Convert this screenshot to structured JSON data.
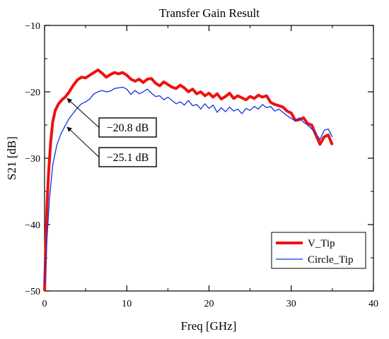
{
  "chart_data": {
    "type": "line",
    "title": "Transfer Gain Result",
    "xlabel": "Freq [GHz]",
    "ylabel": "S21 [dB]",
    "xlim": [
      0,
      40
    ],
    "ylim": [
      -50,
      -10
    ],
    "xticks": [
      0,
      10,
      20,
      30,
      40
    ],
    "yticks": [
      -50,
      -40,
      -30,
      -20,
      -10
    ],
    "grid": false,
    "legend_position": "bottom-right",
    "series": [
      {
        "name": "V_Tip",
        "color": "#ee1111",
        "points": [
          [
            0.0,
            -50.0
          ],
          [
            0.15,
            -43.0
          ],
          [
            0.3,
            -37.0
          ],
          [
            0.5,
            -32.0
          ],
          [
            0.75,
            -27.5
          ],
          [
            1.0,
            -24.5
          ],
          [
            1.3,
            -22.8
          ],
          [
            1.7,
            -21.8
          ],
          [
            2.2,
            -21.1
          ],
          [
            2.5,
            -20.8
          ],
          [
            3.0,
            -20.0
          ],
          [
            3.5,
            -19.0
          ],
          [
            4.0,
            -18.2
          ],
          [
            4.5,
            -17.8
          ],
          [
            5.0,
            -17.9
          ],
          [
            5.5,
            -17.5
          ],
          [
            6.0,
            -17.1
          ],
          [
            6.5,
            -16.7
          ],
          [
            7.0,
            -17.2
          ],
          [
            7.5,
            -17.8
          ],
          [
            8.0,
            -17.4
          ],
          [
            8.5,
            -17.1
          ],
          [
            9.0,
            -17.3
          ],
          [
            9.5,
            -17.1
          ],
          [
            10.0,
            -17.5
          ],
          [
            10.5,
            -18.1
          ],
          [
            11.0,
            -18.4
          ],
          [
            11.5,
            -18.1
          ],
          [
            12.0,
            -18.6
          ],
          [
            12.5,
            -18.1
          ],
          [
            13.0,
            -18.0
          ],
          [
            13.5,
            -18.7
          ],
          [
            14.0,
            -19.1
          ],
          [
            14.5,
            -18.5
          ],
          [
            15.0,
            -18.9
          ],
          [
            15.5,
            -19.3
          ],
          [
            16.0,
            -19.5
          ],
          [
            16.5,
            -19.0
          ],
          [
            17.0,
            -19.4
          ],
          [
            17.5,
            -20.0
          ],
          [
            18.0,
            -19.6
          ],
          [
            18.5,
            -20.3
          ],
          [
            19.0,
            -20.0
          ],
          [
            19.5,
            -20.6
          ],
          [
            20.0,
            -20.2
          ],
          [
            20.5,
            -20.8
          ],
          [
            21.0,
            -20.3
          ],
          [
            21.5,
            -21.1
          ],
          [
            22.0,
            -20.7
          ],
          [
            22.5,
            -20.2
          ],
          [
            23.0,
            -21.0
          ],
          [
            23.5,
            -20.6
          ],
          [
            24.0,
            -20.9
          ],
          [
            24.5,
            -21.2
          ],
          [
            25.0,
            -20.7
          ],
          [
            25.5,
            -21.0
          ],
          [
            26.0,
            -20.5
          ],
          [
            26.5,
            -20.8
          ],
          [
            27.0,
            -20.6
          ],
          [
            27.5,
            -21.6
          ],
          [
            28.0,
            -21.9
          ],
          [
            28.5,
            -22.1
          ],
          [
            29.0,
            -22.3
          ],
          [
            29.5,
            -22.9
          ],
          [
            30.0,
            -23.2
          ],
          [
            30.5,
            -24.3
          ],
          [
            31.0,
            -24.2
          ],
          [
            31.5,
            -23.9
          ],
          [
            32.0,
            -24.8
          ],
          [
            32.5,
            -25.0
          ],
          [
            33.0,
            -26.5
          ],
          [
            33.5,
            -27.9
          ],
          [
            34.0,
            -26.8
          ],
          [
            34.5,
            -26.5
          ],
          [
            35.0,
            -28.0
          ]
        ]
      },
      {
        "name": "Circle_Tip",
        "color": "#1133dd",
        "points": [
          [
            0.0,
            -49.0
          ],
          [
            0.3,
            -42.0
          ],
          [
            0.6,
            -36.0
          ],
          [
            1.0,
            -31.0
          ],
          [
            1.5,
            -28.0
          ],
          [
            2.0,
            -26.3
          ],
          [
            2.5,
            -25.1
          ],
          [
            3.0,
            -24.0
          ],
          [
            3.5,
            -23.2
          ],
          [
            4.0,
            -22.4
          ],
          [
            4.5,
            -21.8
          ],
          [
            5.0,
            -21.5
          ],
          [
            5.5,
            -21.1
          ],
          [
            6.0,
            -20.3
          ],
          [
            6.5,
            -20.0
          ],
          [
            7.0,
            -19.8
          ],
          [
            7.5,
            -20.0
          ],
          [
            8.0,
            -19.9
          ],
          [
            8.5,
            -19.5
          ],
          [
            9.0,
            -19.4
          ],
          [
            9.5,
            -19.3
          ],
          [
            10.0,
            -19.6
          ],
          [
            10.5,
            -20.4
          ],
          [
            11.0,
            -19.8
          ],
          [
            11.5,
            -20.3
          ],
          [
            12.0,
            -20.0
          ],
          [
            12.5,
            -19.6
          ],
          [
            13.0,
            -20.2
          ],
          [
            13.5,
            -20.7
          ],
          [
            14.0,
            -20.6
          ],
          [
            14.5,
            -21.2
          ],
          [
            15.0,
            -20.8
          ],
          [
            15.5,
            -21.3
          ],
          [
            16.0,
            -21.8
          ],
          [
            16.5,
            -21.5
          ],
          [
            17.0,
            -22.0
          ],
          [
            17.5,
            -21.3
          ],
          [
            18.0,
            -22.1
          ],
          [
            18.5,
            -21.9
          ],
          [
            19.0,
            -22.6
          ],
          [
            19.5,
            -21.8
          ],
          [
            20.0,
            -22.5
          ],
          [
            20.5,
            -22.0
          ],
          [
            21.0,
            -23.1
          ],
          [
            21.5,
            -22.4
          ],
          [
            22.0,
            -23.0
          ],
          [
            22.5,
            -22.3
          ],
          [
            23.0,
            -22.9
          ],
          [
            23.5,
            -22.6
          ],
          [
            24.0,
            -23.3
          ],
          [
            24.5,
            -22.5
          ],
          [
            25.0,
            -22.8
          ],
          [
            25.5,
            -22.2
          ],
          [
            26.0,
            -22.6
          ],
          [
            26.5,
            -21.9
          ],
          [
            27.0,
            -22.4
          ],
          [
            27.5,
            -22.2
          ],
          [
            28.0,
            -22.9
          ],
          [
            28.5,
            -22.6
          ],
          [
            29.0,
            -23.1
          ],
          [
            29.5,
            -23.6
          ],
          [
            30.0,
            -24.0
          ],
          [
            30.5,
            -24.4
          ],
          [
            31.0,
            -23.9
          ],
          [
            31.5,
            -24.6
          ],
          [
            32.0,
            -25.0
          ],
          [
            32.5,
            -25.6
          ],
          [
            33.0,
            -26.3
          ],
          [
            33.5,
            -27.2
          ],
          [
            34.0,
            -25.8
          ],
          [
            34.5,
            -25.6
          ],
          [
            35.0,
            -26.8
          ]
        ]
      }
    ],
    "annotations": [
      {
        "text": "−20.8 dB",
        "x": 2.5,
        "y": -20.8
      },
      {
        "text": "−25.1 dB",
        "x": 2.5,
        "y": -25.1
      }
    ]
  }
}
